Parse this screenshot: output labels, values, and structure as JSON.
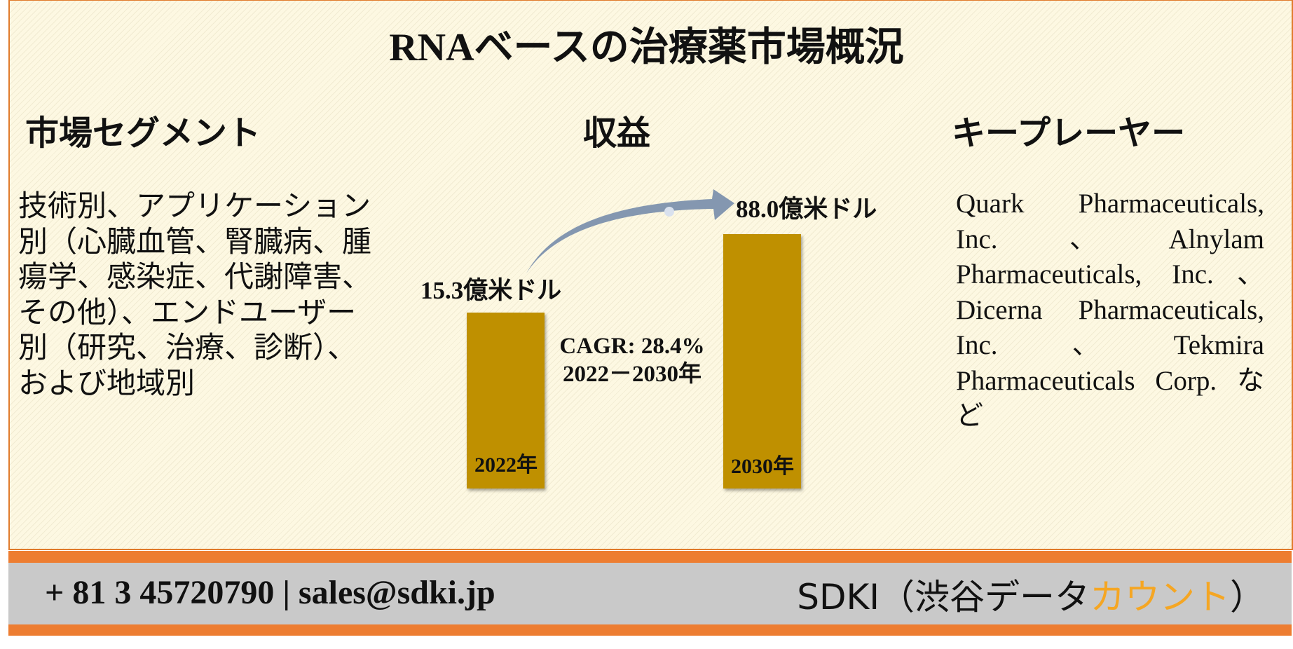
{
  "header": {
    "title": "RNAベースの治療薬市場概況"
  },
  "sections": {
    "segment": {
      "heading": "市場セグメント",
      "text": "技術別、アプリケーション別（心臓血管、腎臓病、腫瘍学、感染症、代謝障害、その他）、エンドユーザー別（研究、治療、診断）、および地域別"
    },
    "revenue": {
      "heading": "収益",
      "start_value": "15.3億米ドル",
      "end_value": "88.0億米ドル",
      "cagr": "CAGR: 28.4%",
      "period": "2022－2030年",
      "start_year": "2022年",
      "end_year": "2030年"
    },
    "players": {
      "heading": "キープレーヤー",
      "text": "Quark Pharmaceuticals, Inc.、Alnylam Pharmaceuticals, Inc.、Dicerna Pharmaceuticals, Inc.、Tekmira Pharmaceuticals Corp. など"
    }
  },
  "footer": {
    "contact": "+ 81 3 45720790 | sales@sdki.jp",
    "company": "SDKI（渋谷データ",
    "company_highlight": "カウント",
    "company_end": "）"
  }
}
